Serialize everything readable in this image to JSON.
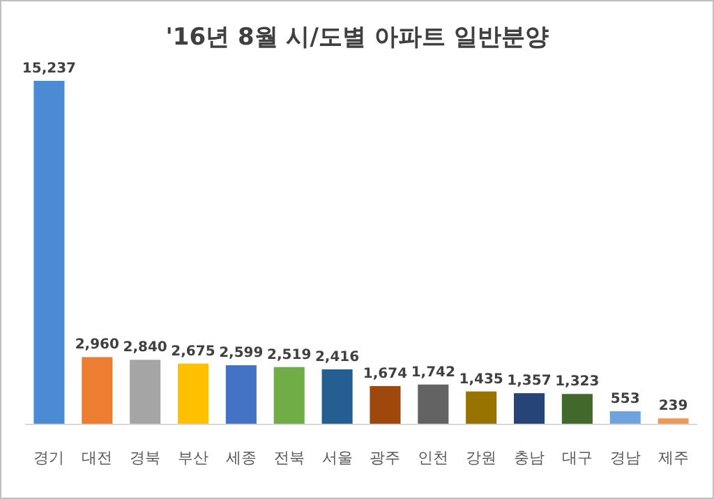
{
  "chart_data": {
    "type": "bar",
    "title": "'16년 8월 시/도별 아파트 일반분양",
    "categories": [
      "경기",
      "대전",
      "경북",
      "부산",
      "세종",
      "전북",
      "서울",
      "광주",
      "인천",
      "강원",
      "충남",
      "대구",
      "경남",
      "제주"
    ],
    "values": [
      15237,
      2960,
      2840,
      2675,
      2599,
      2519,
      2416,
      1674,
      1742,
      1435,
      1357,
      1323,
      553,
      239
    ],
    "value_labels": [
      "15,237",
      "2,960",
      "2,840",
      "2,675",
      "2,599",
      "2,519",
      "2,416",
      "1,674",
      "1,742",
      "1,435",
      "1,357",
      "1,323",
      "553",
      "239"
    ],
    "colors": [
      "#4a8bd4",
      "#ed7d31",
      "#a5a5a5",
      "#ffc000",
      "#4472c4",
      "#70ad47",
      "#255e91",
      "#9e480e",
      "#636363",
      "#997300",
      "#264478",
      "#43682b",
      "#6fa3dd",
      "#f1975a"
    ]
  }
}
